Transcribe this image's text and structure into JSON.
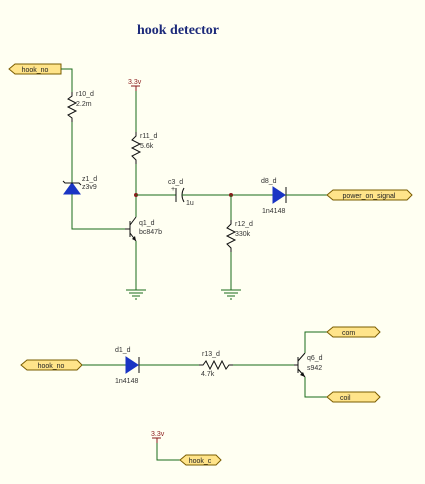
{
  "title": "hook detector",
  "ports": {
    "hook_no_top": "hook_no",
    "power_on_signal": "power_on_signal",
    "hook_no_bottom": "hook_no",
    "com": "com",
    "coil": "coil",
    "hook_c": "hook_c"
  },
  "power": {
    "p1": "3.3v",
    "p2": "3.3v"
  },
  "components": {
    "r10": {
      "ref": "r10_d",
      "value": "2.2m"
    },
    "r11": {
      "ref": "r11_d",
      "value": "5.6k"
    },
    "z1": {
      "ref": "z1_d",
      "value": "z3v9"
    },
    "q1": {
      "ref": "q1_d",
      "value": "bc847b"
    },
    "c3": {
      "ref": "c3_d",
      "value": "1u"
    },
    "d8": {
      "ref": "d8_d",
      "value": "1n4148"
    },
    "r12": {
      "ref": "r12_d",
      "value": "330k"
    },
    "d1": {
      "ref": "d1_d",
      "value": "1n4148"
    },
    "r13": {
      "ref": "r13_d",
      "value": "4.7k"
    },
    "q6": {
      "ref": "q6_d",
      "value": "s942"
    }
  }
}
